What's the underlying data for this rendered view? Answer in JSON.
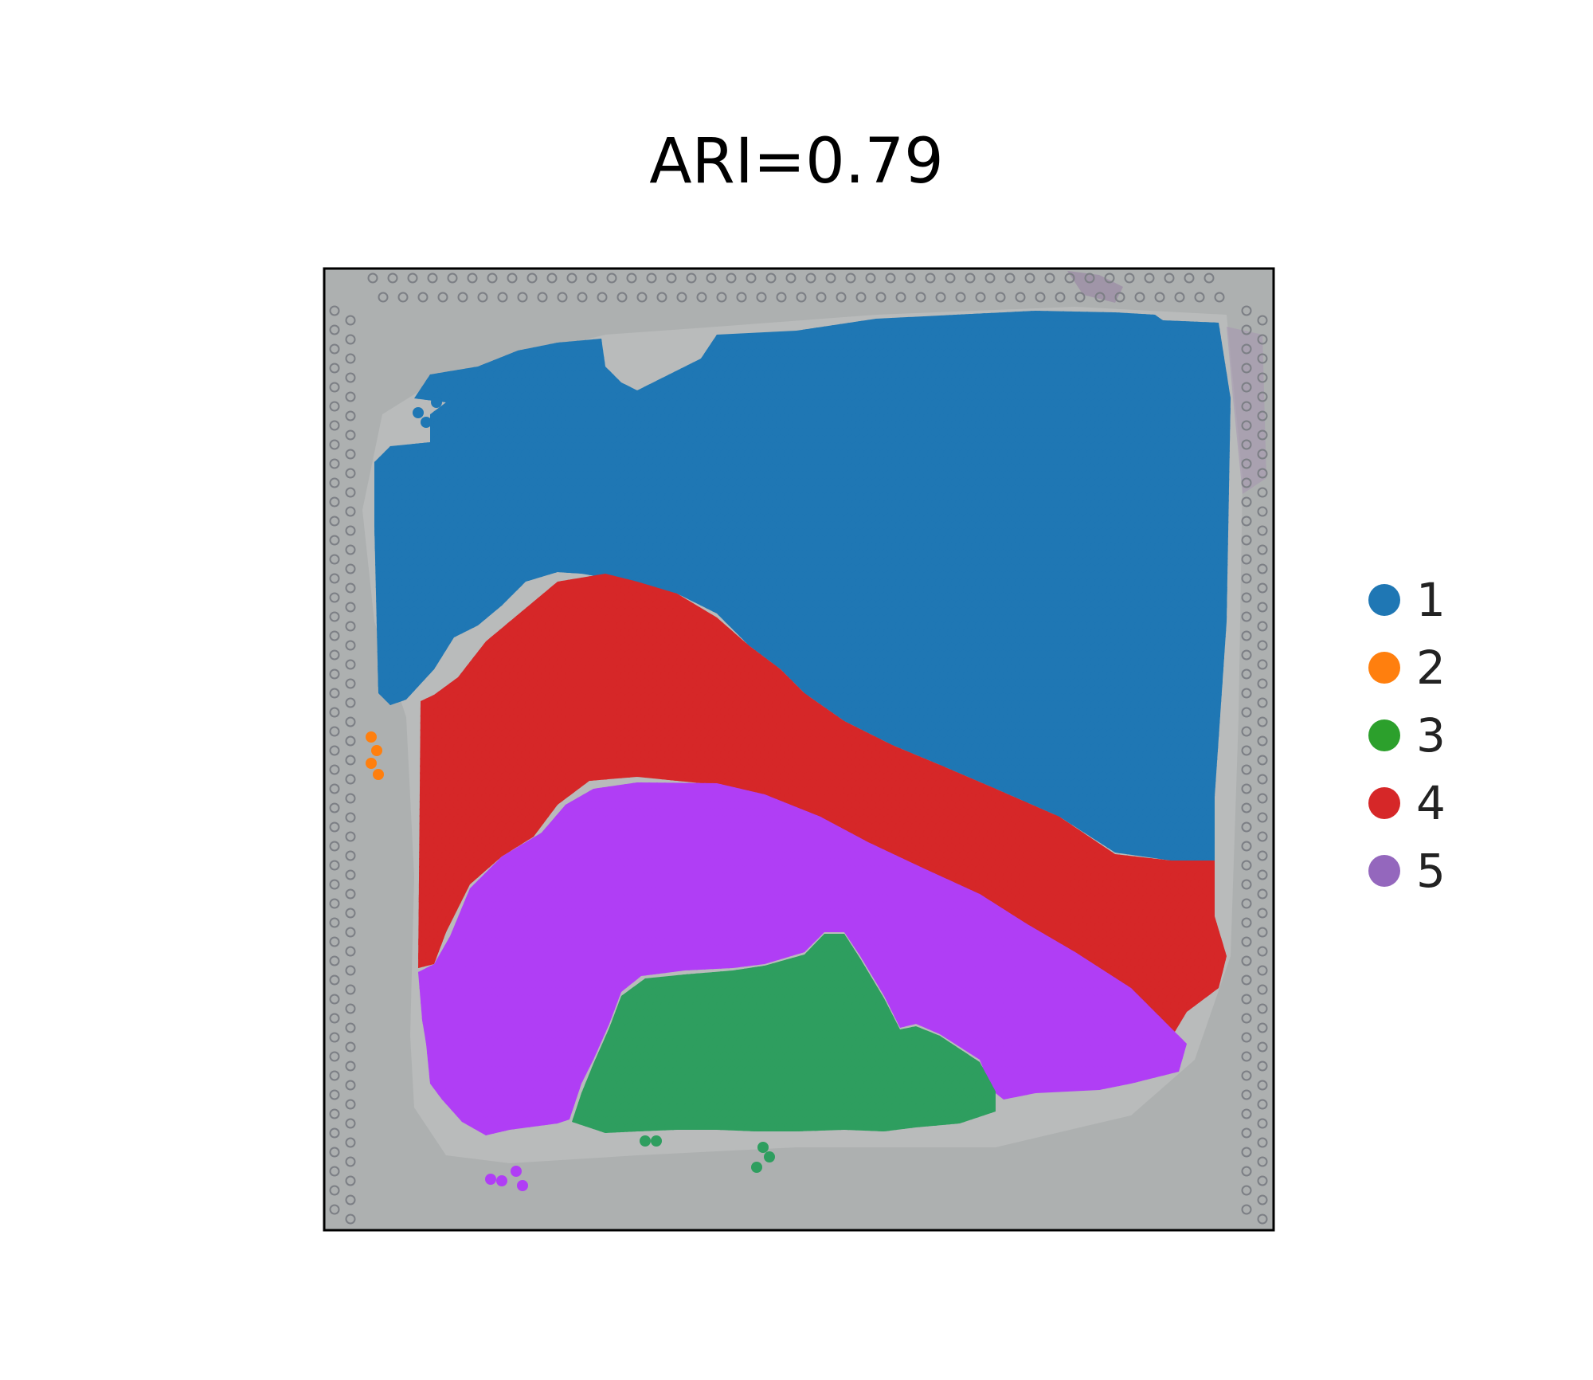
{
  "chart_data": {
    "type": "scatter",
    "title": "ARI=0.79",
    "legend_placement": "right",
    "axes_visible": false,
    "background": "tissue histology image with spot grid",
    "clusters": [
      {
        "label": "1",
        "color": "#1f77b4"
      },
      {
        "label": "2",
        "color": "#ff7f0e"
      },
      {
        "label": "3",
        "color": "#2ca02c"
      },
      {
        "label": "4",
        "color": "#d62728"
      },
      {
        "label": "5",
        "color": "#9467bd"
      }
    ],
    "render_colors": {
      "1": "#1f77b4",
      "2": "#ff7f0e",
      "3": "#2e9e5f",
      "4": "#d62728",
      "5": "#b03ef5"
    }
  }
}
